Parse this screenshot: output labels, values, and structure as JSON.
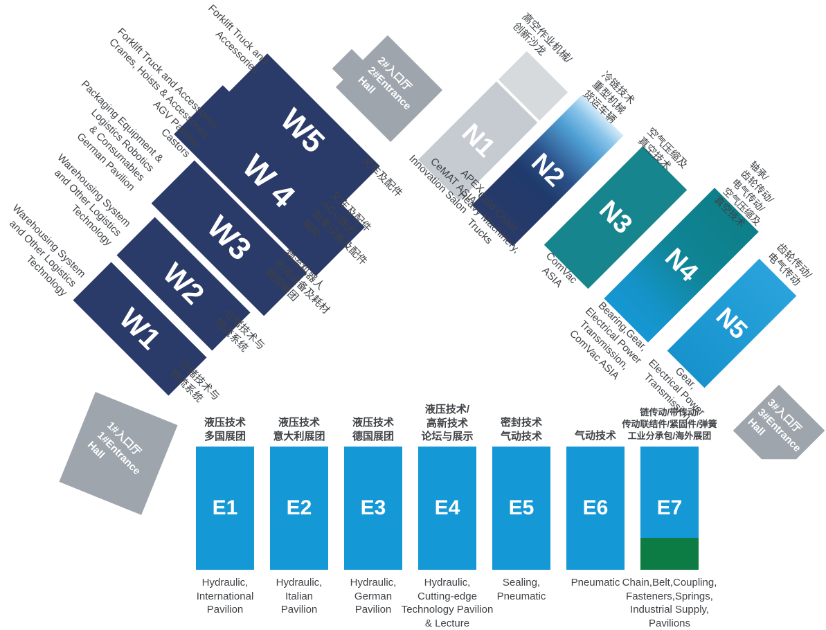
{
  "title": "Exhibition hall floor plan",
  "colors": {
    "bg": "#ffffff",
    "navy": "#2a3a69",
    "eblue": "#1598d6",
    "teal": "#17858d",
    "green": "#0d7c44",
    "n1gray": "#c5cbd1",
    "n1light": "#d7dadd",
    "gray": "#9fa5ad",
    "ink": "#3f4246"
  },
  "halls": {
    "w": [
      {
        "label": "W1",
        "en": [
          "Warehousing System",
          "and Other Logistics",
          "Technology"
        ],
        "cn": [
          "仓储技术与",
          "物流系统"
        ]
      },
      {
        "label": "W2",
        "en": [
          "Warehousing System",
          "and Other Logistics",
          "Technology"
        ],
        "cn": [
          "仓储技术与",
          "物流系统"
        ]
      },
      {
        "label": "W3",
        "en": [
          "Packaging Equipment &",
          "Logistics Robotics",
          "& Consumables",
          "German Pavilion"
        ],
        "cn": [
          "物流机器人",
          "包装设备及耗材",
          "德国展团"
        ]
      },
      {
        "label": "W 4",
        "en": [
          "Forklift Truck and Accessories",
          "Cranes, Hoists & Accessories",
          "AGV Pavilion",
          "Castors"
        ],
        "cn": [
          "叉车及配件",
          "AGV展团",
          "起重设备及配件",
          "脚轮"
        ]
      },
      {
        "label": "W5",
        "en": [
          "Forklift Truck and",
          "Accessories"
        ],
        "cn": [
          "叉车及配件"
        ]
      }
    ],
    "n": [
      {
        "label": "N1",
        "cn": [
          "高空作业机械/",
          "创新沙龙"
        ],
        "en": [
          "APEX,",
          "CeMAT ASIA",
          "Innovation Salon"
        ]
      },
      {
        "label": "N2",
        "cn": [
          "冷链技术",
          "重型机械",
          "货运车辆"
        ],
        "en": [
          "Cold Chain,",
          "Heavy Machinery,",
          "Trucks"
        ]
      },
      {
        "label": "N3",
        "cn": [
          "空气压缩及",
          "真空技术"
        ],
        "en": [
          "ComVac",
          "ASIA"
        ]
      },
      {
        "label": "N4",
        "cn": [
          "轴承/",
          "齿轮传动/",
          "电气传动/",
          "空气压缩及",
          "真空技术"
        ],
        "en": [
          "Bearing,Gear,",
          "Electrical Power",
          "Transmission,",
          "ComVac ASIA"
        ]
      },
      {
        "label": "N5",
        "cn": [
          "齿轮传动/",
          "电气传动"
        ],
        "en": [
          "Gear,",
          "Electrical Power",
          "Transmission"
        ]
      }
    ],
    "e": [
      {
        "label": "E1",
        "cn": [
          "液压技术",
          "多国展团"
        ],
        "en": [
          "Hydraulic,",
          "International",
          "Pavilion"
        ]
      },
      {
        "label": "E2",
        "cn": [
          "液压技术",
          "意大利展团"
        ],
        "en": [
          "Hydraulic,",
          "Italian",
          "Pavilion"
        ]
      },
      {
        "label": "E3",
        "cn": [
          "液压技术",
          "德国展团"
        ],
        "en": [
          "Hydraulic,",
          "German",
          "Pavilion"
        ]
      },
      {
        "label": "E4",
        "cn": [
          "液压技术/",
          "高新技术",
          "论坛与展示"
        ],
        "en": [
          "Hydraulic,",
          "Cutting-edge",
          "Technology Pavilion",
          "& Lecture"
        ]
      },
      {
        "label": "E5",
        "cn": [
          "密封技术",
          "气动技术"
        ],
        "en": [
          "Sealing,",
          "Pneumatic"
        ]
      },
      {
        "label": "E6",
        "cn": [
          "气动技术"
        ],
        "en": [
          "Pneumatic"
        ]
      },
      {
        "label": "E7",
        "cn": [
          "链传动/带传动/",
          "传动联结件/紧固件/弹簧",
          "工业分承包/海外展团"
        ],
        "en": [
          "Chain,Belt,Coupling,",
          "Fasteners,Springs,",
          "Industrial Supply,",
          "Pavilions"
        ]
      }
    ]
  },
  "entrances": [
    {
      "lines": [
        "1#入口厅",
        "1#Entrance",
        "Hall"
      ]
    },
    {
      "lines": [
        "2#入口厅",
        "2#Entrance",
        "Hall"
      ]
    },
    {
      "lines": [
        "3#入口厅",
        "3#Entrance",
        "Hall"
      ]
    }
  ]
}
